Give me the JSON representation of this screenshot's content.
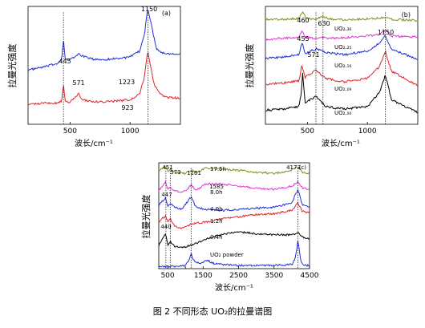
{
  "caption": "图 2   不同形态 UO₂的拉曼谱图",
  "chart_data": [
    {
      "panel": "(a)",
      "type": "line",
      "ylabel": "拉曼光强度",
      "xlabel": "波长/cm⁻¹",
      "xlim": [
        150,
        1420
      ],
      "xticks": [
        500,
        1000
      ],
      "grid": false,
      "annotations": [
        "445",
        "571",
        "1150",
        "1223",
        "923"
      ],
      "series": [
        {
          "color": "#1f2fd6",
          "x": [
            150,
            300,
            400,
            430,
            445,
            460,
            500,
            540,
            571,
            600,
            700,
            800,
            900,
            1000,
            1080,
            1120,
            1140,
            1150,
            1160,
            1190,
            1223,
            1260,
            1300,
            1350,
            1420
          ],
          "y": [
            0.46,
            0.49,
            0.52,
            0.56,
            0.72,
            0.55,
            0.55,
            0.57,
            0.6,
            0.58,
            0.55,
            0.55,
            0.56,
            0.57,
            0.62,
            0.76,
            0.94,
            0.98,
            0.93,
            0.78,
            0.64,
            0.61,
            0.6,
            0.6,
            0.6
          ]
        },
        {
          "color": "#e0242a",
          "x": [
            150,
            300,
            400,
            430,
            445,
            460,
            500,
            540,
            571,
            600,
            700,
            800,
            900,
            923,
            1000,
            1080,
            1120,
            1140,
            1150,
            1160,
            1200,
            1250,
            1300,
            1420
          ],
          "y": [
            0.17,
            0.18,
            0.18,
            0.2,
            0.35,
            0.19,
            0.19,
            0.22,
            0.27,
            0.21,
            0.19,
            0.19,
            0.2,
            0.2,
            0.21,
            0.26,
            0.4,
            0.57,
            0.62,
            0.56,
            0.34,
            0.26,
            0.23,
            0.22
          ]
        }
      ]
    },
    {
      "panel": "(b)",
      "type": "line",
      "ylabel": "拉曼光强度",
      "xlabel": "波长/cm⁻¹",
      "xlim": [
        150,
        1420
      ],
      "xticks": [
        500,
        1000
      ],
      "grid": false,
      "annotations": [
        "460",
        "455",
        "571",
        "630",
        "1150"
      ],
      "series_labels": [
        "UO₂.₃₆",
        "UO₂.₂₅",
        "UO₂.₁₆",
        "UO₂.₀₉",
        "UO₂.₀₀"
      ],
      "series": [
        {
          "label": "UO₂.₃₆",
          "color": "#8b8b1c",
          "x": [
            150,
            300,
            430,
            460,
            490,
            560,
            630,
            700,
            900,
            1100,
            1150,
            1200,
            1420
          ],
          "y": [
            0.89,
            0.89,
            0.9,
            0.95,
            0.9,
            0.89,
            0.91,
            0.89,
            0.89,
            0.9,
            0.91,
            0.89,
            0.88
          ]
        },
        {
          "label": "UO₂.₂₅",
          "color": "#e333d6",
          "x": [
            150,
            300,
            430,
            455,
            480,
            560,
            600,
            700,
            900,
            1100,
            1150,
            1200,
            1420
          ],
          "y": [
            0.72,
            0.73,
            0.74,
            0.8,
            0.74,
            0.73,
            0.74,
            0.73,
            0.74,
            0.76,
            0.8,
            0.75,
            0.74
          ]
        },
        {
          "label": "UO₂.₁₆",
          "color": "#1f2fd6",
          "x": [
            150,
            300,
            430,
            455,
            480,
            571,
            650,
            800,
            1000,
            1100,
            1150,
            1200,
            1420
          ],
          "y": [
            0.56,
            0.57,
            0.59,
            0.7,
            0.6,
            0.64,
            0.61,
            0.59,
            0.62,
            0.69,
            0.75,
            0.64,
            0.55
          ]
        },
        {
          "label": "UO₂.₀₉",
          "color": "#e0242a",
          "x": [
            150,
            300,
            430,
            455,
            480,
            571,
            650,
            800,
            1000,
            1100,
            1150,
            1200,
            1420
          ],
          "y": [
            0.34,
            0.35,
            0.37,
            0.5,
            0.4,
            0.46,
            0.39,
            0.36,
            0.39,
            0.49,
            0.62,
            0.45,
            0.33
          ]
        },
        {
          "label": "UO₂.₀₀",
          "color": "#000000",
          "x": [
            150,
            300,
            430,
            450,
            460,
            480,
            571,
            650,
            800,
            1000,
            1100,
            1150,
            1200,
            1420
          ],
          "y": [
            0.12,
            0.13,
            0.15,
            0.27,
            0.44,
            0.18,
            0.24,
            0.15,
            0.13,
            0.15,
            0.27,
            0.42,
            0.21,
            0.1
          ]
        }
      ]
    },
    {
      "panel": "(c)",
      "type": "line",
      "ylabel": "拉曼光强度",
      "xlabel": "波长/cm⁻¹",
      "xlim": [
        250,
        4500
      ],
      "xticks": [
        500,
        1000,
        1500,
        2500,
        3500,
        4500
      ],
      "xtick_labels": [
        "500",
        "",
        "1500",
        "2500",
        "3500",
        "4500"
      ],
      "grid": false,
      "annotations": [
        "451",
        "573",
        "1161",
        "1585",
        "4173",
        "447",
        "440",
        "17.5h",
        "8.0h",
        "4.0h",
        "1.2h",
        "0.4h",
        "UO₂ powder"
      ],
      "series": [
        {
          "label": "17.5h",
          "color": "#8b8b1c",
          "x": [
            250,
            451,
            500,
            573,
            700,
            1000,
            1161,
            1300,
            1585,
            2000,
            2500,
            3000,
            3500,
            4000,
            4173,
            4300,
            4500
          ],
          "y": [
            0.93,
            0.97,
            0.92,
            0.94,
            0.91,
            0.9,
            0.93,
            0.91,
            0.95,
            0.94,
            0.93,
            0.91,
            0.9,
            0.93,
            0.96,
            0.91,
            0.9
          ]
        },
        {
          "label": "8.0h",
          "color": "#e333d6",
          "x": [
            250,
            447,
            500,
            573,
            700,
            1000,
            1161,
            1300,
            1585,
            2000,
            2500,
            3000,
            3500,
            4000,
            4173,
            4300,
            4500
          ],
          "y": [
            0.74,
            0.82,
            0.74,
            0.77,
            0.73,
            0.73,
            0.79,
            0.74,
            0.8,
            0.8,
            0.78,
            0.76,
            0.75,
            0.78,
            0.82,
            0.76,
            0.75
          ]
        },
        {
          "label": "4.0h",
          "color": "#1f2fd6",
          "x": [
            250,
            447,
            500,
            573,
            700,
            900,
            1161,
            1300,
            1585,
            2000,
            2500,
            3000,
            3500,
            4000,
            4173,
            4300,
            4500
          ],
          "y": [
            0.6,
            0.67,
            0.58,
            0.62,
            0.58,
            0.56,
            0.68,
            0.58,
            0.56,
            0.55,
            0.56,
            0.57,
            0.58,
            0.62,
            0.75,
            0.6,
            0.58
          ]
        },
        {
          "label": "1.2h",
          "color": "#e0242a",
          "x": [
            250,
            440,
            500,
            573,
            700,
            900,
            1161,
            1300,
            1585,
            2000,
            2500,
            3000,
            3500,
            4000,
            4173,
            4300,
            4500
          ],
          "y": [
            0.44,
            0.5,
            0.44,
            0.47,
            0.4,
            0.38,
            0.42,
            0.43,
            0.44,
            0.47,
            0.49,
            0.51,
            0.52,
            0.55,
            0.62,
            0.54,
            0.53
          ]
        },
        {
          "label": "0.4h",
          "color": "#000000",
          "x": [
            250,
            447,
            500,
            573,
            700,
            900,
            1161,
            1300,
            1585,
            2000,
            2500,
            3000,
            3500,
            4000,
            4173,
            4300,
            4500
          ],
          "y": [
            0.22,
            0.33,
            0.22,
            0.26,
            0.21,
            0.2,
            0.22,
            0.24,
            0.28,
            0.32,
            0.35,
            0.33,
            0.32,
            0.32,
            0.34,
            0.3,
            0.28
          ]
        },
        {
          "label": "UO₂ powder",
          "color": "#1f2fd6",
          "x": [
            250,
            500,
            700,
            1000,
            1100,
            1161,
            1250,
            1400,
            1600,
            1800,
            2000,
            2500,
            3000,
            3500,
            4000,
            4100,
            4173,
            4250,
            4350,
            4500
          ],
          "y": [
            0.02,
            0.02,
            0.02,
            0.03,
            0.08,
            0.14,
            0.07,
            0.05,
            0.08,
            0.05,
            0.04,
            0.03,
            0.03,
            0.03,
            0.04,
            0.1,
            0.26,
            0.08,
            0.03,
            0.03
          ]
        }
      ]
    }
  ]
}
